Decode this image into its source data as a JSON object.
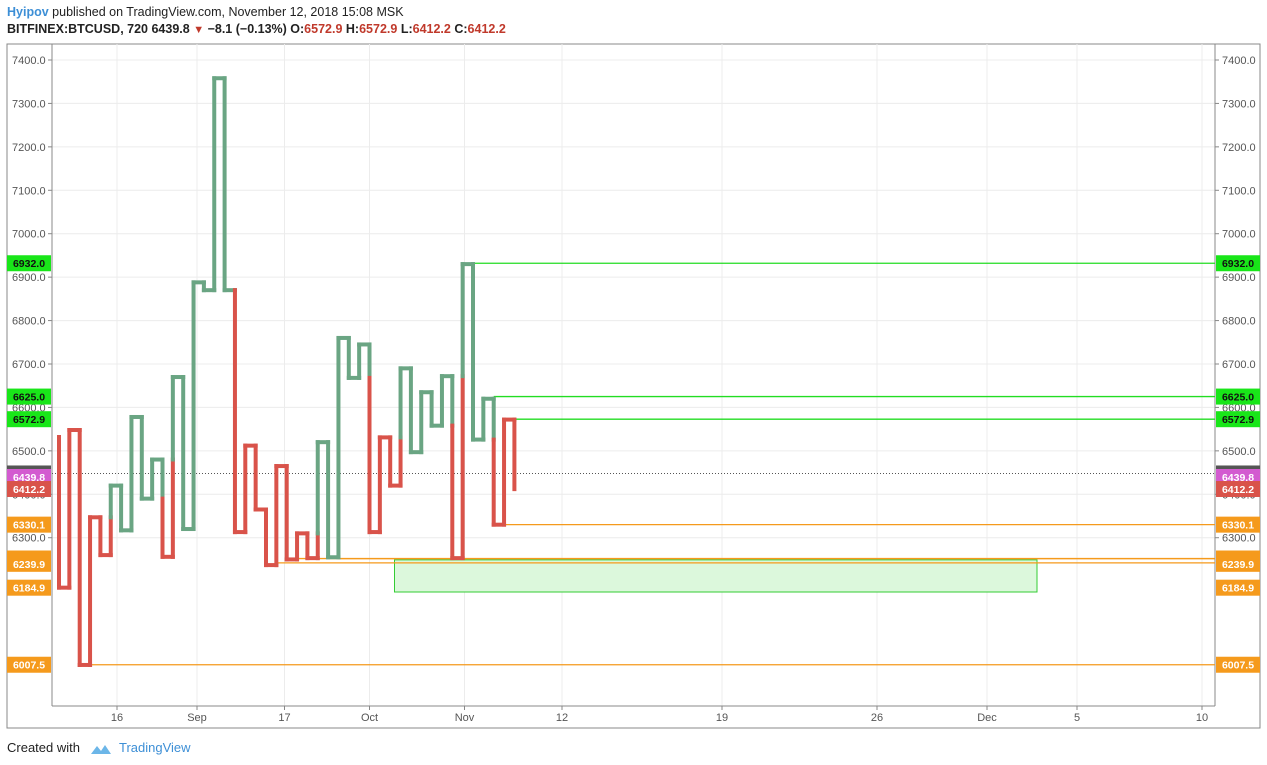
{
  "header": {
    "author": "Hyipov",
    "published_text": "published on TradingView.com, November 12, 2018 15:08 MSK",
    "symbol": "BITFINEX:BTCUSD, 720",
    "last": "6439.8",
    "change": "−8.1 (−0.13%)",
    "o_label": "O:",
    "o_val": "6572.9",
    "h_label": "H:",
    "h_val": "6572.9",
    "l_label": "L:",
    "l_val": "6412.2",
    "c_label": "C:",
    "c_val": "6412.2"
  },
  "footer": {
    "created_with": "Created with",
    "brand": "TradingView"
  },
  "colors": {
    "up": "#6aa583",
    "down": "#d9534a",
    "green_line": "#22dd22",
    "orange_line": "#f59a1c",
    "zone_fill": "#dcf8dc",
    "last_badge": "#555555",
    "current_badge": "#d35bd0"
  },
  "chart_data": {
    "type": "kagi",
    "symbol": "BITFINEX:BTCUSD",
    "interval": "720",
    "ylim": [
      5940,
      7440
    ],
    "y_ticks": [
      6300,
      6400,
      6500,
      6600,
      6700,
      6800,
      6900,
      7000,
      7100,
      7200,
      7300,
      7400
    ],
    "y_tick_format": "0.0",
    "x_ticks": [
      {
        "label": "16",
        "t": 0.13
      },
      {
        "label": "Sep",
        "t": 0.29
      },
      {
        "label": "17",
        "t": 0.465
      },
      {
        "label": "Oct",
        "t": 0.635
      },
      {
        "label": "Nov",
        "t": 0.825
      },
      {
        "label": "12",
        "t": 1.02
      },
      {
        "label": "19",
        "t": 1.34
      },
      {
        "label": "26",
        "t": 1.65
      },
      {
        "label": "Dec",
        "t": 1.87
      },
      {
        "label": "5",
        "t": 2.05
      },
      {
        "label": "10",
        "t": 2.3
      }
    ],
    "kagi_points": [
      6532,
      6185,
      6548,
      6007,
      6347,
      6260,
      6420,
      6317,
      6578,
      6390,
      6480,
      6256,
      6670,
      6320,
      6888,
      6870,
      7358,
      6870,
      6313,
      6512,
      6365,
      6237,
      6465,
      6250,
      6310,
      6253,
      6520,
      6255,
      6760,
      6668,
      6745,
      6313,
      6531,
      6420,
      6690,
      6497,
      6635,
      6558,
      6672,
      6253,
      6930,
      6526,
      6620,
      6330,
      6572,
      6412
    ],
    "horizontal_levels": [
      {
        "value": 6932.0,
        "label": "6932.0",
        "color": "green",
        "start_index": 40
      },
      {
        "value": 6625.0,
        "label": "6625.0",
        "color": "green",
        "start_index": 42
      },
      {
        "value": 6572.9,
        "label": "6572.9",
        "color": "green",
        "start_index": 44
      },
      {
        "value": 6330.1,
        "label": "6330.1",
        "color": "orange",
        "start_index": 43
      },
      {
        "value": 6251.9,
        "label": "6251.9",
        "color": "orange",
        "start_index": 27
      },
      {
        "value": 6252.0,
        "label": "6252.0",
        "color": "orange",
        "start_index": 23
      },
      {
        "value": 6242.0,
        "label": "6242.0",
        "color": "orange",
        "start_index": 21
      },
      {
        "value": 6007.5,
        "label": "6007.5",
        "color": "orange",
        "start_index": 3
      }
    ],
    "axis_badges": [
      {
        "value": 6932.0,
        "label": "6932.0",
        "kind": "green"
      },
      {
        "value": 6625.0,
        "label": "6625.0",
        "kind": "green"
      },
      {
        "value": 6572.9,
        "label": "6572.9",
        "kind": "green"
      },
      {
        "value": 6447.9,
        "label": "6447.9",
        "kind": "last"
      },
      {
        "value": 6439.8,
        "label": "6439.8",
        "kind": "current"
      },
      {
        "value": 6412.2,
        "label": "6412.2",
        "kind": "close"
      },
      {
        "value": 6330.1,
        "label": "6330.1",
        "kind": "orange"
      },
      {
        "value": 6251.9,
        "label": "6251.9",
        "kind": "orange"
      },
      {
        "value": 6252.0,
        "label": "6252.0",
        "kind": "orange"
      },
      {
        "value": 6242.0,
        "label": "6242.0",
        "kind": "orange"
      },
      {
        "value": 6239.9,
        "label": "6239.9",
        "kind": "orange"
      },
      {
        "value": 6184.9,
        "label": "6184.9",
        "kind": "orange"
      },
      {
        "value": 6007.5,
        "label": "6007.5",
        "kind": "orange"
      }
    ],
    "last_price_line": 6447.9,
    "zone": {
      "top": 6249.0,
      "bottom": 6175.0,
      "from_t": 0.685,
      "to_t": 1.97
    }
  }
}
